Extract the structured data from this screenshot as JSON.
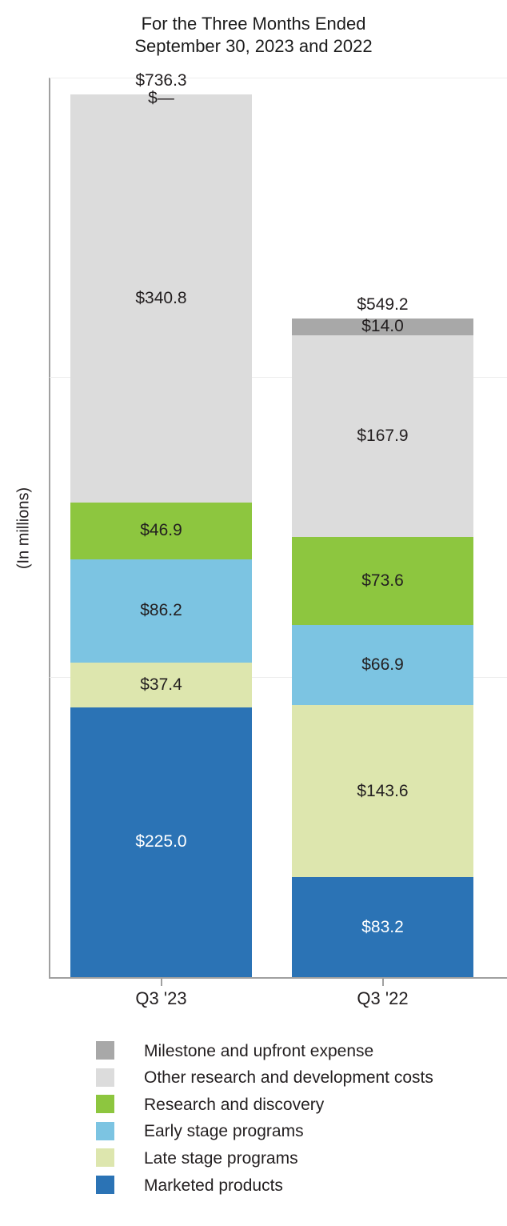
{
  "chart_data": {
    "type": "bar",
    "stacked": true,
    "title": "For the Three Months Ended September 30, 2023 and 2022",
    "title_lines": [
      "For the Three Months Ended",
      "September 30, 2023 and 2022"
    ],
    "ylabel": "(In millions)",
    "categories": [
      "Q3 '23",
      "Q3 '22"
    ],
    "ylim": [
      0,
      750
    ],
    "gridline_values": [
      250,
      500,
      750
    ],
    "grid": true,
    "legend_position": "bottom",
    "totals": [
      {
        "value": 736.3,
        "label": "$736.3"
      },
      {
        "value": 549.2,
        "label": "$549.2"
      }
    ],
    "series": [
      {
        "name": "Marketed products",
        "color": "#2b73b5",
        "label_color": "#ffffff",
        "values": [
          225.0,
          83.2
        ],
        "labels": [
          "$225.0",
          "$83.2"
        ]
      },
      {
        "name": "Late stage programs",
        "color": "#dde6ae",
        "label_color": "#231f20",
        "values": [
          37.4,
          143.6
        ],
        "labels": [
          "$37.4",
          "$143.6"
        ]
      },
      {
        "name": "Early stage programs",
        "color": "#7cc4e2",
        "label_color": "#231f20",
        "values": [
          86.2,
          66.9
        ],
        "labels": [
          "$86.2",
          "$66.9"
        ]
      },
      {
        "name": "Research and discovery",
        "color": "#8dc63f",
        "label_color": "#231f20",
        "values": [
          46.9,
          73.6
        ],
        "labels": [
          "$46.9",
          "$73.6"
        ]
      },
      {
        "name": "Other research and development costs",
        "color": "#dcdcdc",
        "label_color": "#231f20",
        "values": [
          340.8,
          167.9
        ],
        "labels": [
          "$340.8",
          "$167.9"
        ]
      },
      {
        "name": "Milestone and upfront expense",
        "color": "#a8a8a8",
        "label_color": "#231f20",
        "values": [
          0,
          14.0
        ],
        "labels": [
          "$—",
          "$14.0"
        ]
      }
    ],
    "legend": [
      {
        "label": "Milestone and upfront expense",
        "color": "#a8a8a8"
      },
      {
        "label": "Other research and development costs",
        "color": "#dcdcdc"
      },
      {
        "label": "Research and discovery",
        "color": "#8dc63f"
      },
      {
        "label": "Early stage programs",
        "color": "#7cc4e2"
      },
      {
        "label": "Late stage programs",
        "color": "#dde6ae"
      },
      {
        "label": "Marketed products",
        "color": "#2b73b5"
      }
    ]
  }
}
